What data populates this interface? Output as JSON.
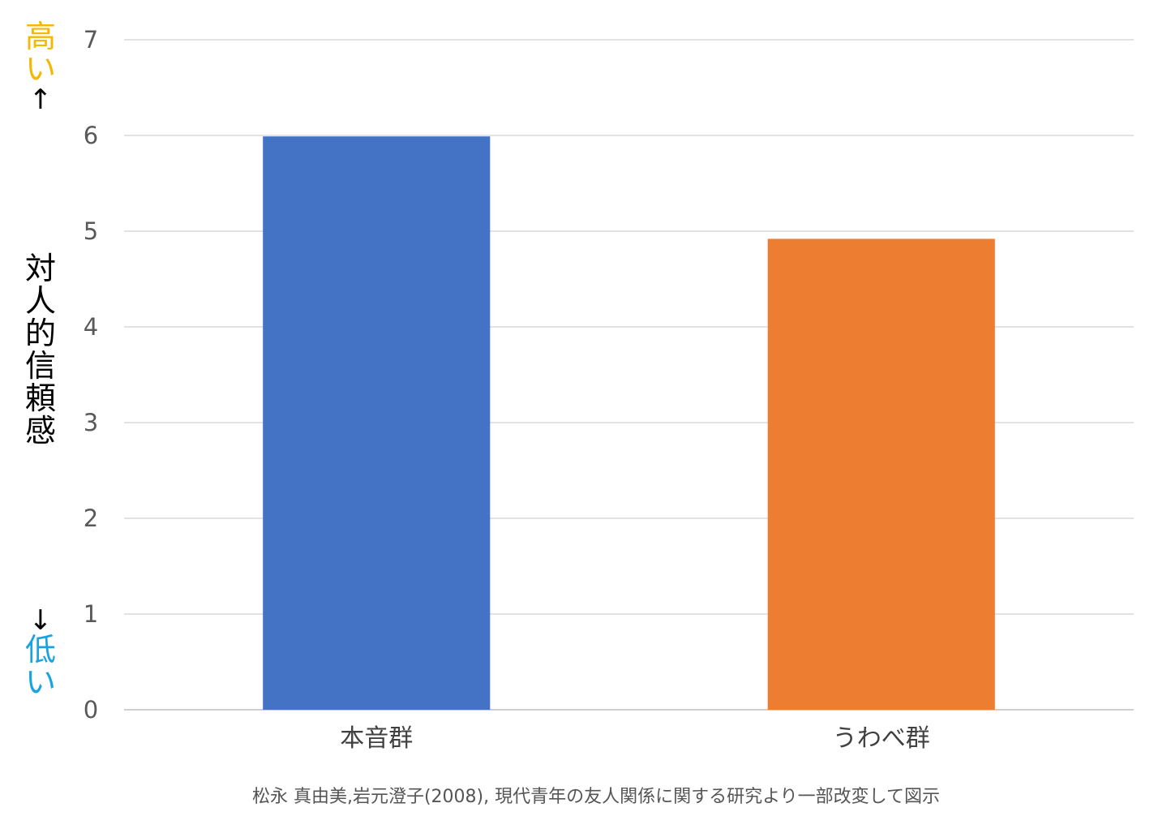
{
  "chart_data": {
    "type": "bar",
    "categories": [
      "本音群",
      "うわべ群"
    ],
    "values": [
      5.99,
      4.92
    ],
    "colors": [
      "#4472c4",
      "#ed7d31"
    ],
    "ylim": [
      0,
      7
    ],
    "yticks": [
      0,
      1,
      2,
      3,
      4,
      5,
      6,
      7
    ],
    "grid": true,
    "ylabel": "対人的信頼感",
    "ylabel_high": "高い",
    "ylabel_low": "低い",
    "arrow_up": "↑",
    "arrow_down": "↓",
    "high_color": "#f5b800",
    "low_color": "#1aa3e0"
  },
  "source": "松永 真由美,岩元澄子(2008), 現代青年の友人関係に関する研究より一部改変して図示"
}
